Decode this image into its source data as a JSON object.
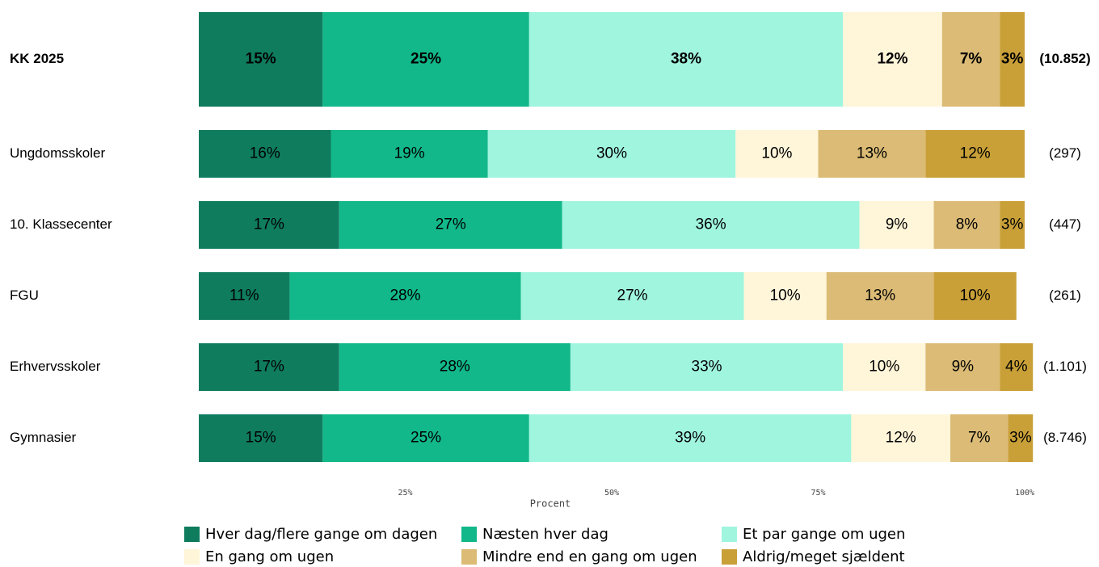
{
  "chart_data": {
    "type": "stacked-barh",
    "categories": [
      "KK 2025",
      "Ungdomsskoler",
      "10. Klassecenter",
      "FGU",
      "Erhvervsskoler",
      "Gymnasier"
    ],
    "count_labels": [
      "(10.852)",
      "(297)",
      "(447)",
      "(261)",
      "(1.101)",
      "(8.746)"
    ],
    "series": [
      {
        "name": "Hver dag/flere gange om dagen",
        "color": "#0f7c5e",
        "values": [
          15,
          16,
          17,
          11,
          17,
          15
        ],
        "value_labels": [
          "15%",
          "16%",
          "17%",
          "11%",
          "17%",
          "15%"
        ]
      },
      {
        "name": "Næsten hver dag",
        "color": "#12b88a",
        "values": [
          25,
          19,
          27,
          28,
          28,
          25
        ],
        "value_labels": [
          "25%",
          "19%",
          "27%",
          "28%",
          "28%",
          "25%"
        ]
      },
      {
        "name": "Et par gange om ugen",
        "color": "#a0f5df",
        "values": [
          38,
          30,
          36,
          27,
          33,
          39
        ],
        "value_labels": [
          "38%",
          "30%",
          "36%",
          "27%",
          "33%",
          "39%"
        ]
      },
      {
        "name": "En gang om ugen",
        "color": "#fff5d9",
        "values": [
          12,
          10,
          9,
          10,
          10,
          12
        ],
        "value_labels": [
          "12%",
          "10%",
          "9%",
          "10%",
          "10%",
          "12%"
        ]
      },
      {
        "name": "Mindre end en gang om ugen",
        "color": "#dbbb75",
        "values": [
          7,
          13,
          8,
          13,
          9,
          7
        ],
        "value_labels": [
          "7%",
          "13%",
          "8%",
          "13%",
          "9%",
          "7%"
        ]
      },
      {
        "name": "Aldrig/meget sjældent",
        "color": "#c9a038",
        "values": [
          3,
          12,
          3,
          10,
          4,
          3
        ],
        "value_labels": [
          "3%",
          "12%",
          "3%",
          "10%",
          "4%",
          "3%"
        ]
      }
    ],
    "xlabel": "Procent",
    "xlim": [
      0,
      100
    ],
    "xticks": [
      {
        "value": 25,
        "label": "25%"
      },
      {
        "value": 50,
        "label": "50%"
      },
      {
        "value": 75,
        "label": "75%"
      },
      {
        "value": 100,
        "label": "100%"
      }
    ]
  }
}
